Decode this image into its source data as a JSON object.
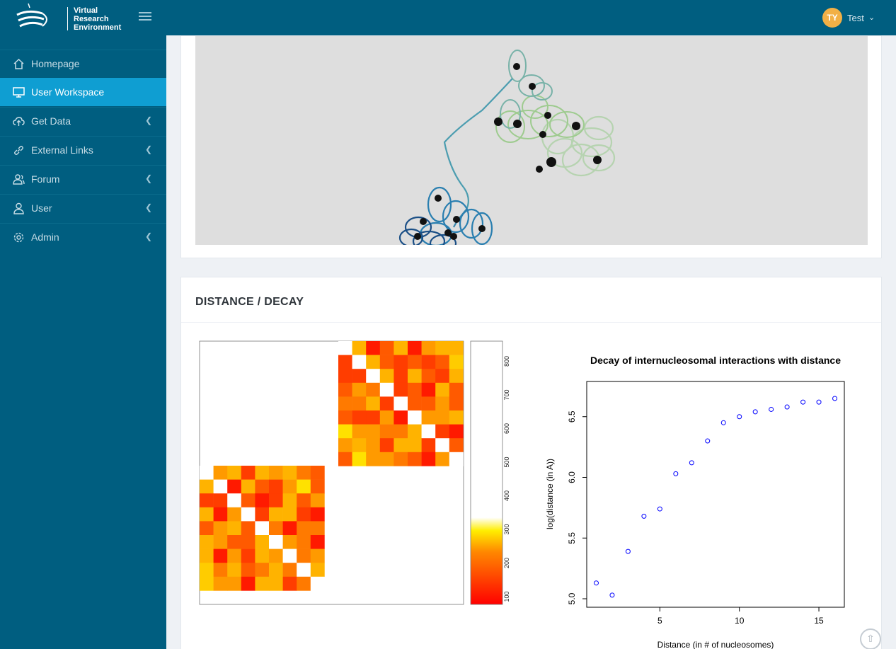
{
  "app": {
    "logo_lines": [
      "Virtual",
      "Research",
      "Environment"
    ],
    "user_initials": "TY",
    "user_name": "Test"
  },
  "sidebar": {
    "items": [
      {
        "label": "Homepage",
        "icon": "home-icon",
        "active": false,
        "expandable": false
      },
      {
        "label": "User Workspace",
        "icon": "monitor-icon",
        "active": true,
        "expandable": false
      },
      {
        "label": "Get Data",
        "icon": "cloud-upload-icon",
        "active": false,
        "expandable": true
      },
      {
        "label": "External Links",
        "icon": "link-icon",
        "active": false,
        "expandable": true
      },
      {
        "label": "Forum",
        "icon": "users-icon",
        "active": false,
        "expandable": true
      },
      {
        "label": "User",
        "icon": "user-icon",
        "active": false,
        "expandable": true
      },
      {
        "label": "Admin",
        "icon": "gear-icon",
        "active": false,
        "expandable": true
      }
    ]
  },
  "section": {
    "title": "DISTANCE / DECAY"
  },
  "colors": {
    "topbar": "#005e80",
    "sidebar_active": "#0f9ed2",
    "avatar": "#f2b046"
  },
  "chart_data": [
    {
      "type": "heatmap",
      "colorbar_ticks": [
        100,
        200,
        300,
        400,
        500,
        600,
        700,
        800
      ],
      "colorscale": [
        "#ff0000",
        "#ffff00",
        "#ffffff"
      ]
    },
    {
      "type": "scatter",
      "title": "Decay of internucleosomal interactions with distance",
      "xlabel": "Distance (in # of nucleosomes)",
      "ylabel": "log(distance (in A))",
      "x": [
        1,
        2,
        3,
        4,
        5,
        6,
        7,
        8,
        9,
        10,
        11,
        12,
        13,
        14,
        15,
        16
      ],
      "y": [
        5.13,
        5.03,
        5.39,
        5.68,
        5.74,
        6.03,
        6.12,
        6.3,
        6.45,
        6.5,
        6.54,
        6.56,
        6.58,
        6.62,
        6.62,
        6.65
      ],
      "xlim": [
        0.4,
        16.6
      ],
      "ylim": [
        4.93,
        6.79
      ],
      "xticks": [
        5,
        10,
        15
      ],
      "yticks": [
        5.0,
        5.5,
        6.0,
        6.5
      ],
      "marker_color": "#0000ff"
    }
  ]
}
